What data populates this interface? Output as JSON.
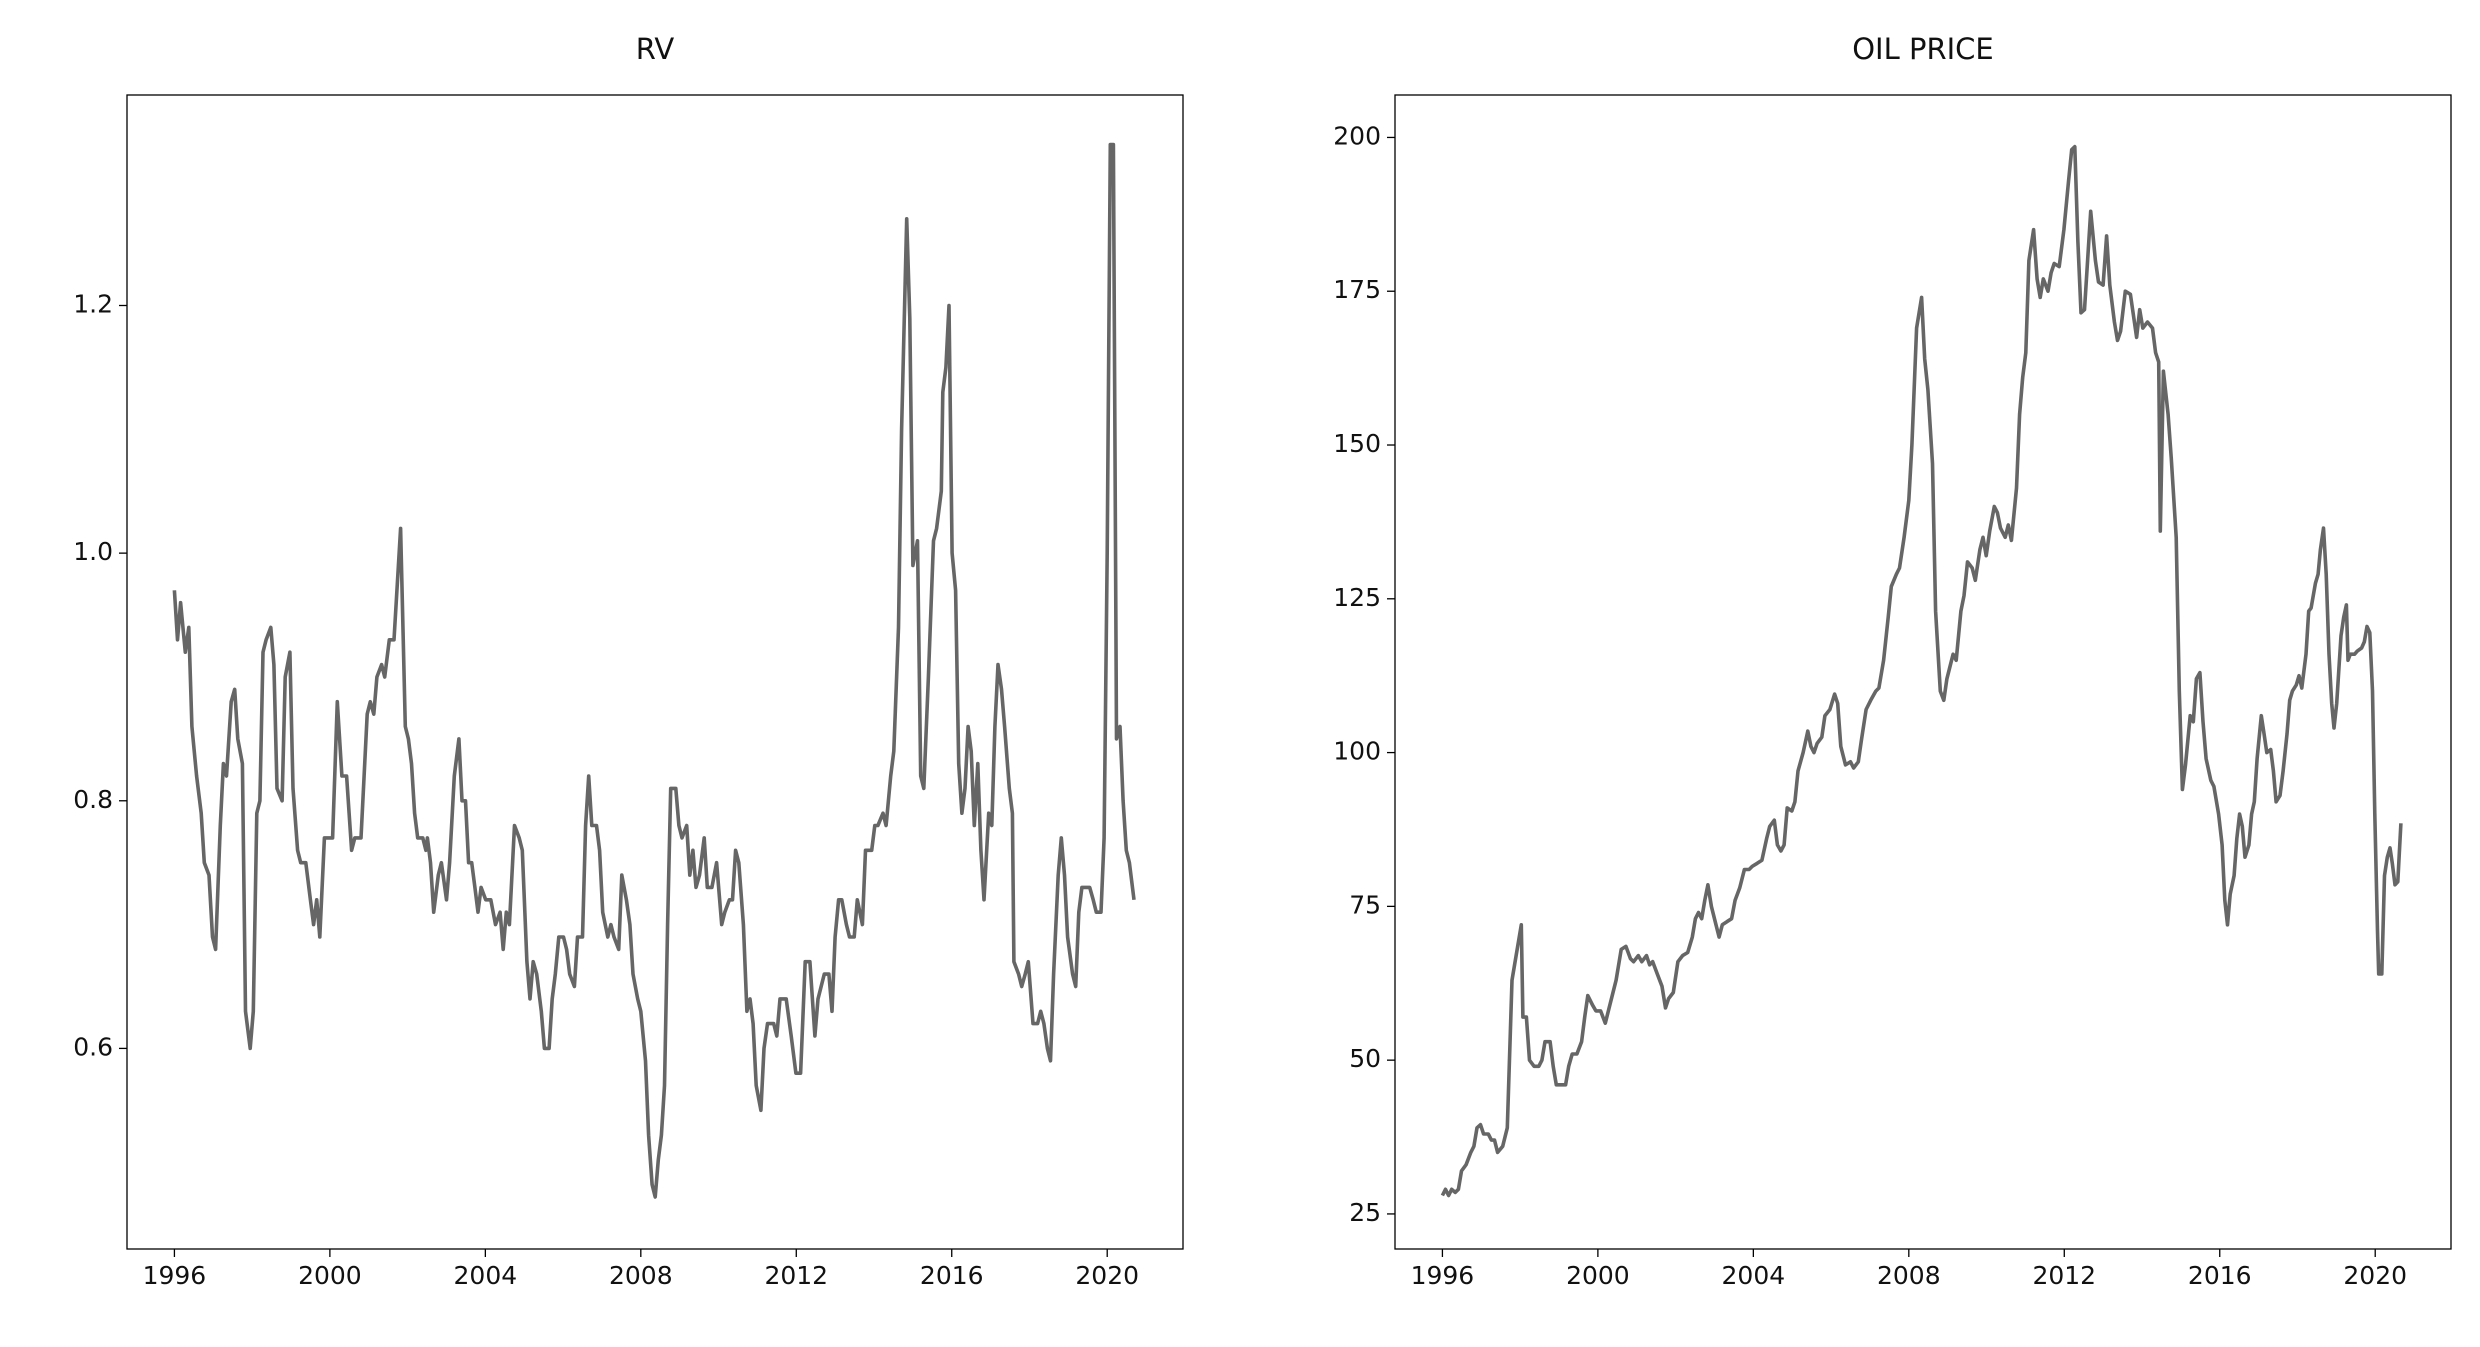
{
  "chart_data": [
    {
      "type": "line",
      "title": "RV",
      "color": "#666666",
      "xlim": [
        1994.78,
        2021.95
      ],
      "ylim": [
        0.438,
        1.37
      ],
      "xticks": [
        1996,
        2000,
        2004,
        2008,
        2012,
        2016,
        2020
      ],
      "yticks": [
        0.6,
        0.8,
        {
          "value": 1,
          "label": "1.0"
        },
        1.2
      ],
      "x": [
        1996.0,
        1996.08,
        1996.16,
        1996.28,
        1996.37,
        1996.45,
        1996.57,
        1996.69,
        1996.77,
        1996.89,
        1996.98,
        1997.06,
        1997.18,
        1997.26,
        1997.34,
        1997.46,
        1997.55,
        1997.63,
        1997.75,
        1997.83,
        1997.95,
        1998.03,
        1998.12,
        1998.2,
        1998.28,
        1998.36,
        1998.48,
        1998.56,
        1998.64,
        1998.77,
        1998.85,
        1998.97,
        1999.05,
        1999.17,
        1999.25,
        1999.38,
        1999.5,
        1999.58,
        1999.66,
        1999.74,
        1999.86,
        2000.07,
        2000.19,
        2000.31,
        2000.43,
        2000.56,
        2000.64,
        2000.8,
        2000.96,
        2001.04,
        2001.13,
        2001.21,
        2001.33,
        2001.41,
        2001.53,
        2001.65,
        2001.82,
        2001.94,
        2002.02,
        2002.1,
        2002.18,
        2002.26,
        2002.39,
        2002.47,
        2002.51,
        2002.59,
        2002.67,
        2002.79,
        2002.87,
        2003.0,
        2003.08,
        2003.2,
        2003.32,
        2003.4,
        2003.49,
        2003.57,
        2003.65,
        2003.73,
        2003.81,
        2003.89,
        2004.01,
        2004.14,
        2004.26,
        2004.38,
        2004.46,
        2004.54,
        2004.62,
        2004.75,
        2004.87,
        2004.95,
        2005.07,
        2005.15,
        2005.23,
        2005.32,
        2005.44,
        2005.52,
        2005.64,
        2005.72,
        2005.8,
        2005.89,
        2006.01,
        2006.09,
        2006.17,
        2006.29,
        2006.37,
        2006.5,
        2006.58,
        2006.66,
        2006.74,
        2006.86,
        2006.94,
        2007.02,
        2007.15,
        2007.23,
        2007.31,
        2007.43,
        2007.51,
        2007.63,
        2007.72,
        2007.8,
        2007.92,
        2008.0,
        2008.12,
        2008.2,
        2008.29,
        2008.37,
        2008.45,
        2008.53,
        2008.61,
        2008.69,
        2008.77,
        2008.9,
        2008.98,
        2009.06,
        2009.18,
        2009.26,
        2009.34,
        2009.42,
        2009.51,
        2009.63,
        2009.71,
        2009.83,
        2009.95,
        2010.08,
        2010.16,
        2010.28,
        2010.36,
        2010.44,
        2010.52,
        2010.64,
        2010.73,
        2010.81,
        2010.89,
        2010.97,
        2011.09,
        2011.17,
        2011.26,
        2011.42,
        2011.5,
        2011.58,
        2011.74,
        2011.87,
        2011.99,
        2012.11,
        2012.23,
        2012.35,
        2012.48,
        2012.56,
        2012.72,
        2012.84,
        2012.92,
        2013.0,
        2013.09,
        2013.17,
        2013.29,
        2013.37,
        2013.49,
        2013.57,
        2013.7,
        2013.78,
        2013.94,
        2014.02,
        2014.1,
        2014.23,
        2014.31,
        2014.43,
        2014.51,
        2014.63,
        2014.71,
        2014.84,
        2014.92,
        2015.0,
        2015.12,
        2015.2,
        2015.28,
        2015.4,
        2015.53,
        2015.61,
        2015.73,
        2015.77,
        2015.85,
        2015.93,
        2016.01,
        2016.1,
        2016.18,
        2016.26,
        2016.34,
        2016.42,
        2016.5,
        2016.58,
        2016.67,
        2016.75,
        2016.83,
        2016.95,
        2017.03,
        2017.11,
        2017.19,
        2017.28,
        2017.36,
        2017.48,
        2017.56,
        2017.6,
        2017.72,
        2017.8,
        2017.89,
        2017.97,
        2018.09,
        2018.21,
        2018.29,
        2018.37,
        2018.46,
        2018.54,
        2018.62,
        2018.74,
        2018.82,
        2018.9,
        2018.98,
        2019.11,
        2019.19,
        2019.27,
        2019.35,
        2019.55,
        2019.64,
        2019.72,
        2019.84,
        2019.92,
        2020.0,
        2020.08,
        2020.16,
        2020.24,
        2020.33,
        2020.41,
        2020.49,
        2020.57,
        2020.69
      ],
      "values": [
        0.97,
        0.93,
        0.96,
        0.92,
        0.94,
        0.86,
        0.82,
        0.79,
        0.75,
        0.74,
        0.69,
        0.68,
        0.78,
        0.83,
        0.82,
        0.88,
        0.89,
        0.85,
        0.83,
        0.63,
        0.6,
        0.63,
        0.79,
        0.8,
        0.92,
        0.93,
        0.94,
        0.91,
        0.81,
        0.8,
        0.9,
        0.92,
        0.81,
        0.76,
        0.75,
        0.75,
        0.72,
        0.7,
        0.72,
        0.69,
        0.77,
        0.77,
        0.88,
        0.82,
        0.82,
        0.76,
        0.77,
        0.77,
        0.87,
        0.88,
        0.87,
        0.9,
        0.91,
        0.9,
        0.93,
        0.93,
        1.02,
        0.86,
        0.85,
        0.83,
        0.79,
        0.77,
        0.77,
        0.76,
        0.77,
        0.75,
        0.71,
        0.74,
        0.75,
        0.72,
        0.75,
        0.82,
        0.85,
        0.8,
        0.8,
        0.75,
        0.75,
        0.73,
        0.71,
        0.73,
        0.72,
        0.72,
        0.7,
        0.71,
        0.68,
        0.71,
        0.7,
        0.78,
        0.77,
        0.76,
        0.67,
        0.64,
        0.67,
        0.66,
        0.63,
        0.6,
        0.6,
        0.64,
        0.66,
        0.69,
        0.69,
        0.68,
        0.66,
        0.65,
        0.69,
        0.69,
        0.78,
        0.82,
        0.78,
        0.78,
        0.76,
        0.71,
        0.69,
        0.7,
        0.69,
        0.68,
        0.74,
        0.72,
        0.7,
        0.66,
        0.64,
        0.63,
        0.59,
        0.53,
        0.49,
        0.48,
        0.51,
        0.53,
        0.57,
        0.7,
        0.81,
        0.81,
        0.78,
        0.77,
        0.78,
        0.74,
        0.76,
        0.73,
        0.74,
        0.77,
        0.73,
        0.73,
        0.75,
        0.7,
        0.71,
        0.72,
        0.72,
        0.76,
        0.75,
        0.7,
        0.63,
        0.64,
        0.62,
        0.57,
        0.55,
        0.6,
        0.62,
        0.62,
        0.61,
        0.64,
        0.64,
        0.61,
        0.58,
        0.58,
        0.67,
        0.67,
        0.61,
        0.64,
        0.66,
        0.66,
        0.63,
        0.69,
        0.72,
        0.72,
        0.7,
        0.69,
        0.69,
        0.72,
        0.7,
        0.76,
        0.76,
        0.78,
        0.78,
        0.79,
        0.78,
        0.82,
        0.84,
        0.94,
        1.1,
        1.27,
        1.19,
        0.99,
        1.01,
        0.82,
        0.81,
        0.9,
        1.01,
        1.02,
        1.05,
        1.13,
        1.15,
        1.2,
        1.0,
        0.97,
        0.83,
        0.79,
        0.81,
        0.86,
        0.84,
        0.78,
        0.83,
        0.76,
        0.72,
        0.79,
        0.78,
        0.86,
        0.91,
        0.89,
        0.86,
        0.81,
        0.79,
        0.67,
        0.66,
        0.65,
        0.66,
        0.67,
        0.62,
        0.62,
        0.63,
        0.62,
        0.6,
        0.59,
        0.66,
        0.74,
        0.77,
        0.74,
        0.69,
        0.66,
        0.65,
        0.71,
        0.73,
        0.73,
        0.72,
        0.71,
        0.71,
        0.77,
        1.0,
        1.33,
        1.33,
        0.85,
        0.86,
        0.8,
        0.76,
        0.75,
        0.72
      ]
    },
    {
      "type": "line",
      "title": "OIL PRICE",
      "color": "#666666",
      "xlim": [
        1994.78,
        2021.95
      ],
      "ylim": [
        19.3,
        206.9
      ],
      "xticks": [
        1996,
        2000,
        2004,
        2008,
        2012,
        2016,
        2020
      ],
      "yticks": [
        25,
        50,
        75,
        100,
        125,
        150,
        175,
        200
      ],
      "x": [
        1996.0,
        1996.08,
        1996.16,
        1996.24,
        1996.33,
        1996.41,
        1996.49,
        1996.61,
        1996.73,
        1996.81,
        1996.89,
        1996.98,
        1997.06,
        1997.18,
        1997.26,
        1997.34,
        1997.42,
        1997.55,
        1997.67,
        1997.79,
        1997.87,
        1998.03,
        1998.07,
        1998.16,
        1998.24,
        1998.36,
        1998.48,
        1998.56,
        1998.64,
        1998.77,
        1998.85,
        1998.93,
        1999.05,
        1999.17,
        1999.25,
        1999.34,
        1999.46,
        1999.58,
        1999.66,
        1999.74,
        1999.86,
        1999.95,
        2000.07,
        2000.19,
        2000.31,
        2000.39,
        2000.47,
        2000.6,
        2000.72,
        2000.84,
        2000.92,
        2001.04,
        2001.13,
        2001.25,
        2001.33,
        2001.41,
        2001.53,
        2001.65,
        2001.74,
        2001.82,
        2001.94,
        2002.06,
        2002.18,
        2002.31,
        2002.43,
        2002.51,
        2002.59,
        2002.67,
        2002.75,
        2002.83,
        2002.92,
        2003.04,
        2003.12,
        2003.2,
        2003.32,
        2003.44,
        2003.53,
        2003.65,
        2003.77,
        2003.89,
        2003.97,
        2004.1,
        2004.22,
        2004.34,
        2004.42,
        2004.54,
        2004.62,
        2004.71,
        2004.79,
        2004.87,
        2004.99,
        2005.07,
        2005.15,
        2005.28,
        2005.4,
        2005.48,
        2005.56,
        2005.64,
        2005.76,
        2005.84,
        2005.97,
        2006.09,
        2006.17,
        2006.25,
        2006.37,
        2006.5,
        2006.58,
        2006.7,
        2006.78,
        2006.9,
        2007.02,
        2007.15,
        2007.23,
        2007.35,
        2007.47,
        2007.55,
        2007.68,
        2007.76,
        2007.88,
        2008.0,
        2008.08,
        2008.2,
        2008.33,
        2008.41,
        2008.49,
        2008.61,
        2008.69,
        2008.81,
        2008.9,
        2008.98,
        2009.06,
        2009.14,
        2009.22,
        2009.34,
        2009.42,
        2009.51,
        2009.63,
        2009.71,
        2009.83,
        2009.91,
        2009.99,
        2010.08,
        2010.2,
        2010.28,
        2010.36,
        2010.48,
        2010.56,
        2010.64,
        2010.77,
        2010.85,
        2010.93,
        2011.01,
        2011.09,
        2011.21,
        2011.3,
        2011.38,
        2011.46,
        2011.58,
        2011.66,
        2011.74,
        2011.87,
        2011.99,
        2012.11,
        2012.19,
        2012.27,
        2012.35,
        2012.43,
        2012.52,
        2012.6,
        2012.68,
        2012.8,
        2012.88,
        2013.0,
        2013.09,
        2013.17,
        2013.29,
        2013.37,
        2013.45,
        2013.57,
        2013.7,
        2013.78,
        2013.86,
        2013.94,
        2014.02,
        2014.14,
        2014.27,
        2014.35,
        2014.43,
        2014.47,
        2014.55,
        2014.67,
        2014.75,
        2014.88,
        2014.96,
        2015.04,
        2015.12,
        2015.24,
        2015.32,
        2015.4,
        2015.49,
        2015.57,
        2015.65,
        2015.77,
        2015.85,
        2015.97,
        2016.06,
        2016.13,
        2016.2,
        2016.27,
        2016.37,
        2016.44,
        2016.51,
        2016.58,
        2016.65,
        2016.75,
        2016.82,
        2016.89,
        2016.96,
        2017.07,
        2017.14,
        2017.21,
        2017.31,
        2017.38,
        2017.45,
        2017.55,
        2017.63,
        2017.73,
        2017.8,
        2017.87,
        2017.97,
        2018.04,
        2018.11,
        2018.22,
        2018.29,
        2018.35,
        2018.46,
        2018.53,
        2018.59,
        2018.67,
        2018.74,
        2018.81,
        2018.88,
        2018.94,
        2019.01,
        2019.12,
        2019.19,
        2019.26,
        2019.3,
        2019.36,
        2019.47,
        2019.54,
        2019.65,
        2019.72,
        2019.79,
        2019.86,
        2019.93,
        2019.99,
        2020.06,
        2020.09,
        2020.17,
        2020.24,
        2020.31,
        2020.38,
        2020.44,
        2020.51,
        2020.58,
        2020.66
      ],
      "values": [
        28,
        29,
        28,
        29,
        28.5,
        29,
        32,
        33,
        35,
        36,
        39,
        39.5,
        38,
        38,
        37,
        37,
        35,
        36,
        39,
        63,
        66,
        72,
        57,
        57,
        50,
        49,
        49,
        50,
        53,
        53,
        49,
        46,
        46,
        46,
        49,
        51,
        51,
        53,
        57,
        60.5,
        59,
        58,
        58,
        56,
        59,
        61,
        63,
        68,
        68.5,
        66.5,
        66,
        67,
        66,
        67,
        65.5,
        66,
        64,
        62,
        58.5,
        60,
        61,
        66,
        67,
        67.5,
        70,
        73,
        74,
        73,
        76,
        78.5,
        75,
        72,
        70,
        72,
        72.5,
        73,
        76,
        78,
        81,
        81,
        81.5,
        82,
        82.5,
        86,
        88,
        89,
        85,
        84,
        85,
        91,
        90.5,
        92,
        97,
        100,
        103.5,
        101,
        100,
        101.5,
        102.5,
        106,
        107,
        109.5,
        108,
        101,
        98,
        98.5,
        97.5,
        98.5,
        102,
        107,
        108.5,
        110,
        110.5,
        115,
        122,
        127,
        129,
        130,
        135,
        141,
        150,
        169,
        174,
        164,
        159,
        147,
        123,
        110,
        108.5,
        112,
        114,
        116,
        115,
        123,
        125.5,
        131,
        130,
        128,
        133,
        135,
        132,
        136,
        140,
        139,
        136.5,
        135,
        137,
        134.5,
        143,
        155,
        161,
        165,
        180,
        185,
        177,
        174,
        177,
        175,
        178,
        179.5,
        179,
        185,
        193,
        198,
        198.5,
        183,
        171.5,
        172,
        180,
        188,
        180,
        176.5,
        176,
        184,
        176,
        170,
        167,
        168.5,
        175,
        174.5,
        171,
        167.5,
        172,
        169,
        170,
        169,
        165,
        163.5,
        136,
        162,
        155,
        148,
        135,
        110,
        94,
        98,
        106,
        105,
        112,
        113,
        105,
        99,
        95.5,
        94.5,
        90,
        85,
        76,
        72,
        77,
        80,
        86,
        90,
        88,
        83,
        85,
        90,
        92,
        99,
        106,
        103,
        100,
        100.5,
        97,
        92,
        93,
        97,
        103,
        108.5,
        110,
        111,
        112.5,
        110.5,
        116,
        123,
        123.5,
        127.5,
        129,
        133,
        136.5,
        129,
        116,
        108,
        104,
        108,
        119,
        122,
        124,
        115,
        116,
        116,
        116.5,
        117,
        118,
        120.5,
        119.5,
        110,
        90,
        71,
        64,
        64,
        80,
        83,
        84.5,
        82,
        78.5,
        79,
        88.5
      ]
    }
  ]
}
